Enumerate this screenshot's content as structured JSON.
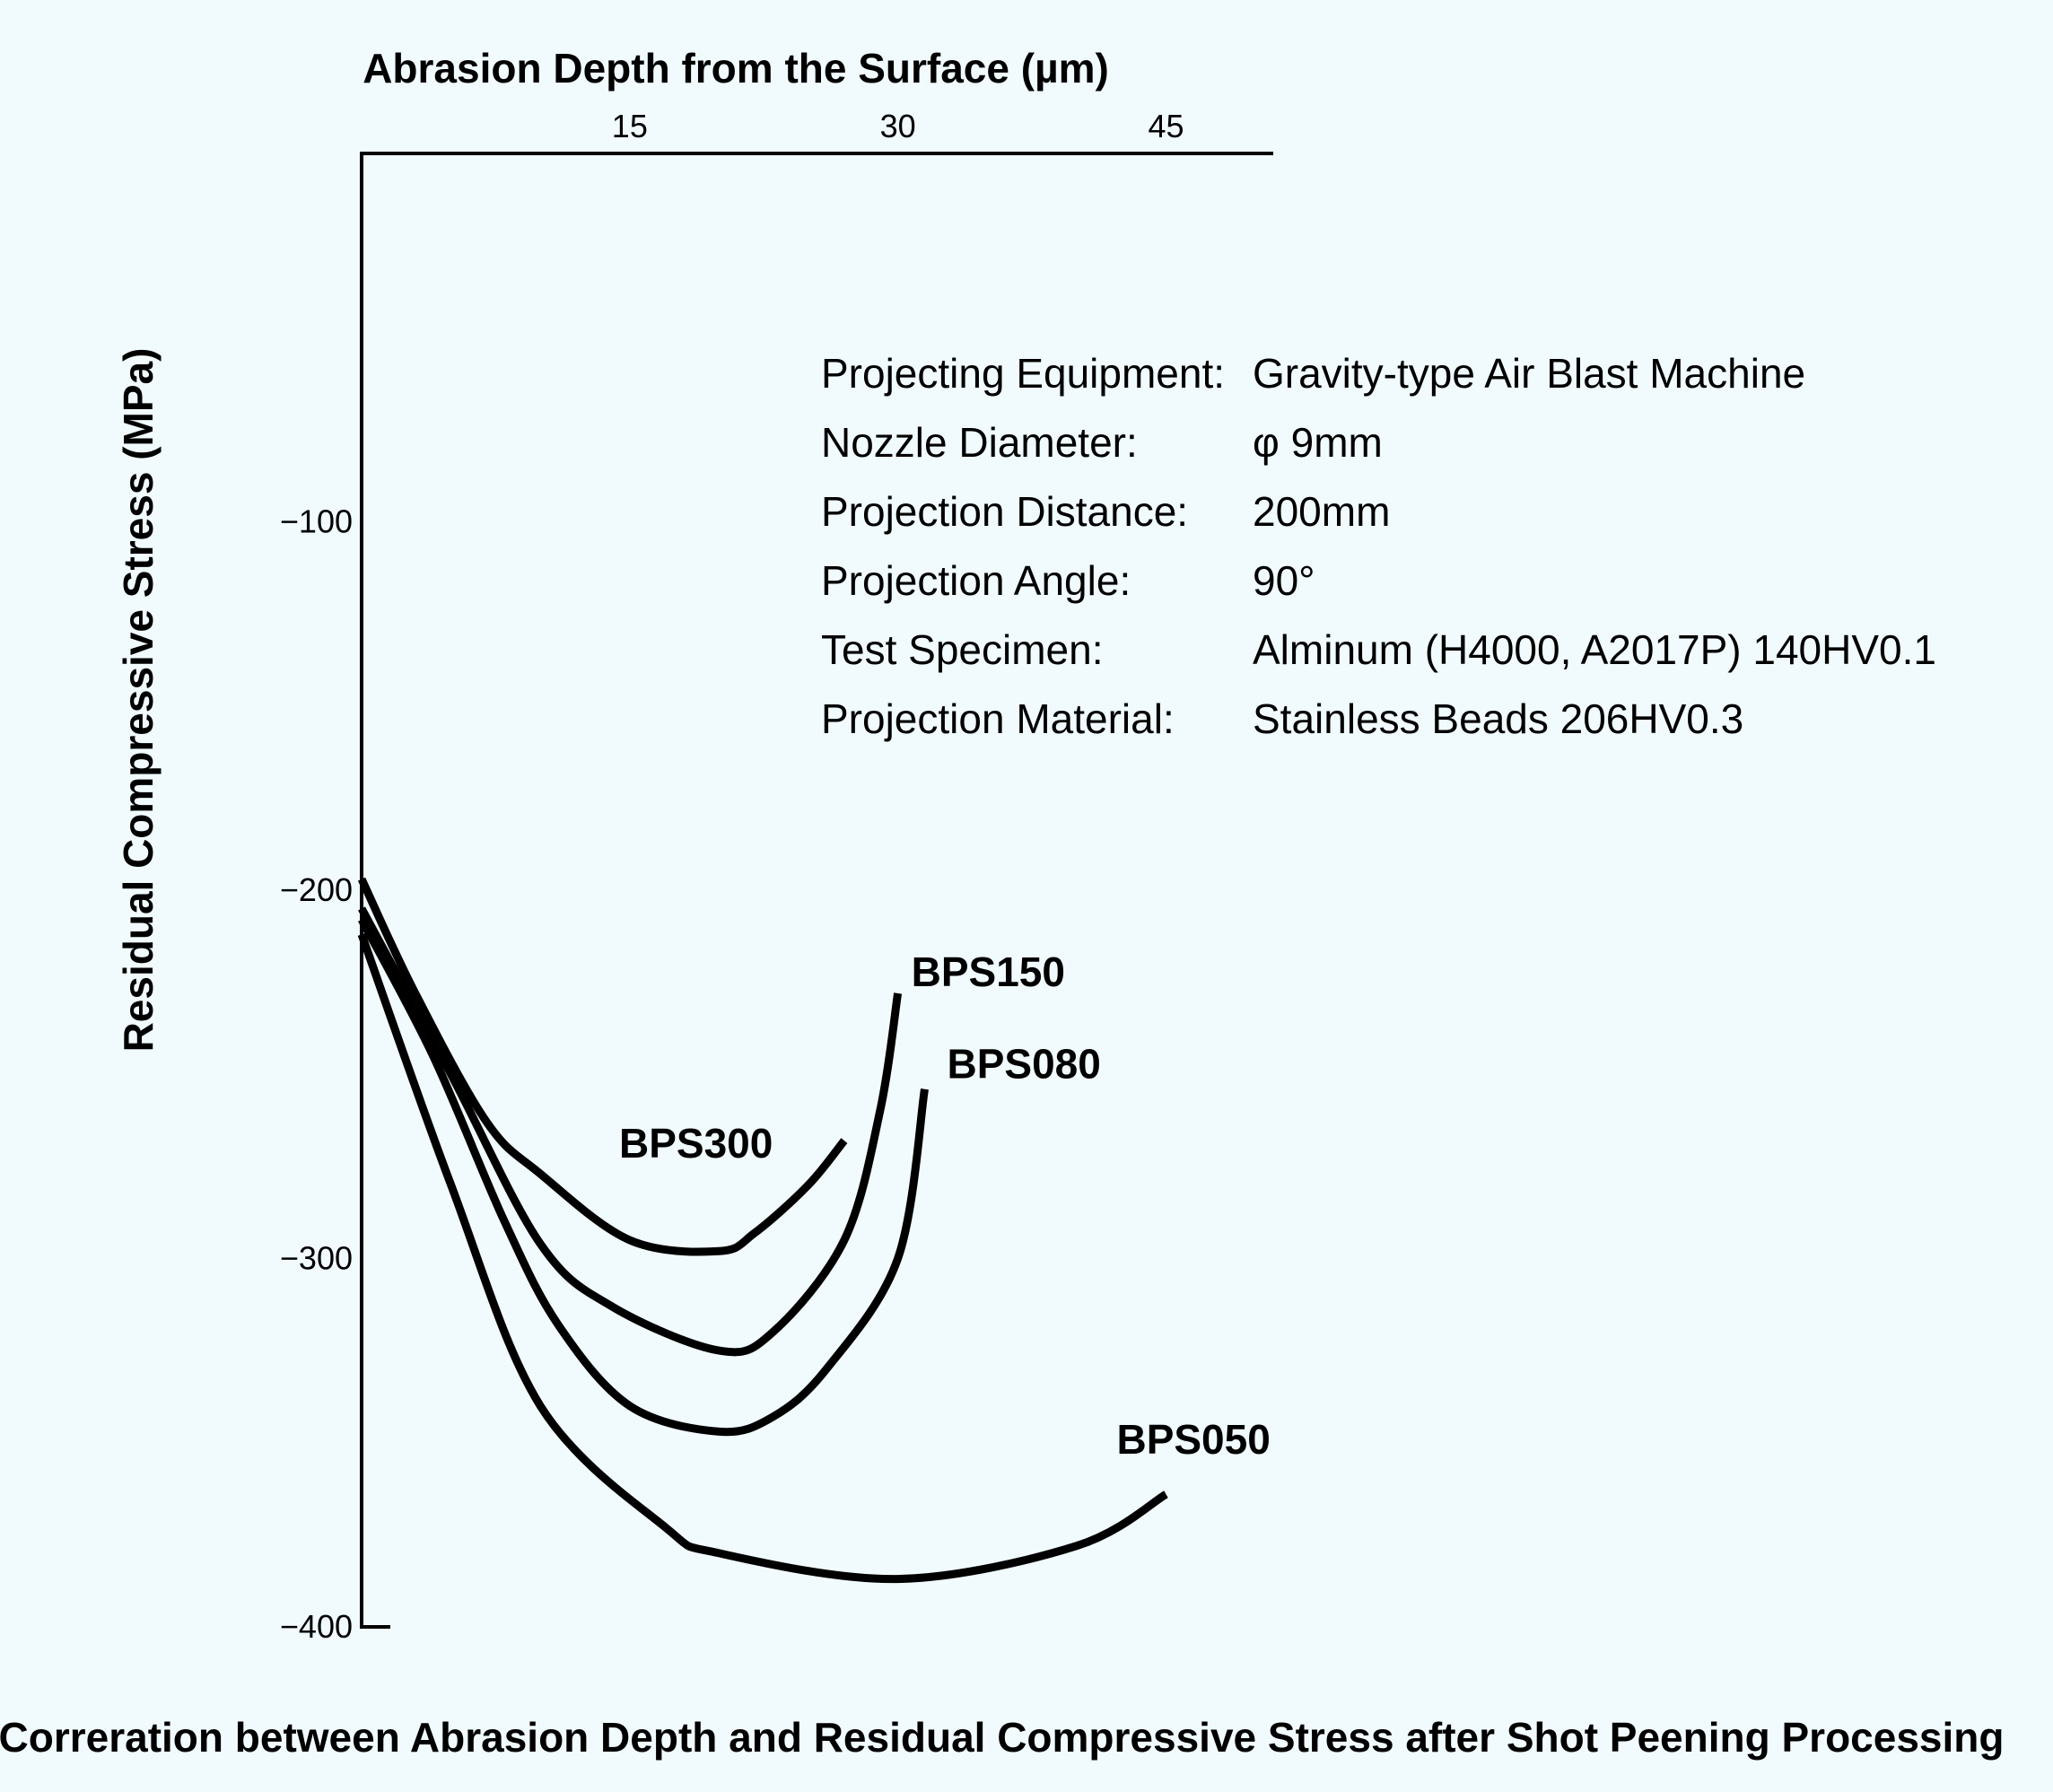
{
  "chart_data": {
    "type": "line",
    "title": "Correration between Abrasion Depth and Residual Compressive Stress after Shot Peening Processing",
    "xlabel": "Abrasion Depth from the Surface (µm)",
    "ylabel": "Residual Compressive Stress (MPa)",
    "xlim": [
      0,
      51
    ],
    "ylim": [
      -400,
      0
    ],
    "x_axis_position": "top",
    "x_ticks": [
      "15",
      "30",
      "45"
    ],
    "x_tick_values": [
      15,
      30,
      45
    ],
    "y_ticks": [
      "−100",
      "−200",
      "−300",
      "−400"
    ],
    "y_tick_values": [
      -100,
      -200,
      -300,
      -400
    ],
    "grid": false,
    "legend": "none",
    "series": [
      {
        "name": "BPS300",
        "x": [
          0,
          3,
          7,
          10,
          15,
          20,
          22,
          25,
          27
        ],
        "y": [
          -197,
          -228,
          -263,
          -277,
          -295,
          -298,
          -293,
          -280,
          -268
        ]
      },
      {
        "name": "BPS150",
        "x": [
          0,
          5,
          10,
          14,
          20,
          23,
          27,
          29,
          30
        ],
        "y": [
          -205,
          -250,
          -296,
          -313,
          -325,
          -320,
          -295,
          -260,
          -228
        ]
      },
      {
        "name": "BPS080",
        "x": [
          0,
          4,
          8,
          11,
          15,
          20,
          23,
          26,
          30,
          31.5
        ],
        "y": [
          -208,
          -245,
          -290,
          -318,
          -340,
          -347,
          -343,
          -330,
          -300,
          -254
        ]
      },
      {
        "name": "BPS050",
        "x": [
          0,
          5,
          10,
          17,
          20,
          30,
          40,
          45
        ],
        "y": [
          -212,
          -280,
          -340,
          -373,
          -380,
          -387,
          -378,
          -364
        ]
      }
    ],
    "info_box": [
      {
        "label": "Projecting Equipment:",
        "value": "Gravity-type Air Blast Machine"
      },
      {
        "label": "Nozzle Diameter:",
        "value": "φ 9mm"
      },
      {
        "label": "Projection Distance:",
        "value": "200mm"
      },
      {
        "label": "Projection Angle:",
        "value": "90°"
      },
      {
        "label": "Test Specimen:",
        "value": "Alminum (H4000, A2017P) 140HV0.1"
      },
      {
        "label": "Projection Material:",
        "value": "Stainless Beads 206HV0.3"
      }
    ],
    "colors": {
      "background": "#f1fbfe",
      "line": "#000000"
    }
  }
}
